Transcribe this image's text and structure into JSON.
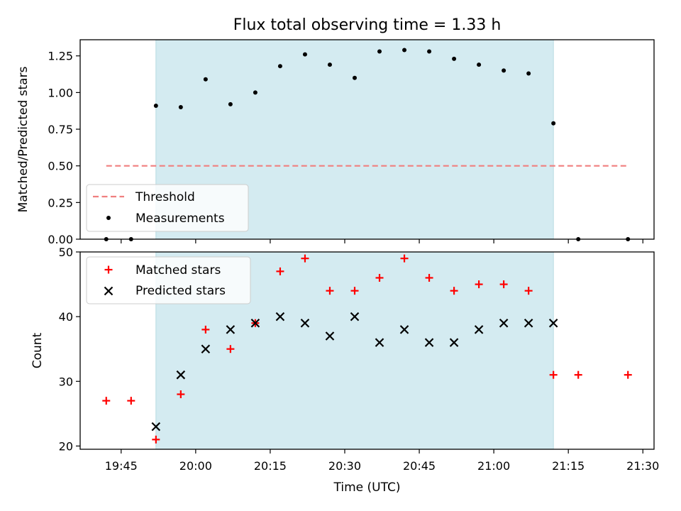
{
  "chart_data": [
    {
      "type": "scatter",
      "title": "Flux total observing time = 1.33 h",
      "xlabel": "",
      "ylabel": "Matched/Predicted stars",
      "ylim": [
        0,
        1.36
      ],
      "yticks": [
        "0.00",
        "0.25",
        "0.50",
        "0.75",
        "1.00",
        "1.25"
      ],
      "ytick_values": [
        0,
        0.25,
        0.5,
        0.75,
        1.0,
        1.25
      ],
      "legend_position": "lower-left",
      "shaded_interval": [
        "19:52",
        "21:12"
      ],
      "shade_color": "#d4ebf1",
      "series": [
        {
          "name": "Threshold",
          "style": "dashed-line",
          "color": "#f07f7f",
          "x": [
            "19:42",
            "21:27"
          ],
          "y": [
            0.5,
            0.5
          ]
        },
        {
          "name": "Measurements",
          "style": "dot",
          "color": "#000000",
          "x": [
            "19:42",
            "19:47",
            "19:52",
            "19:57",
            "20:02",
            "20:07",
            "20:12",
            "20:17",
            "20:22",
            "20:27",
            "20:32",
            "20:37",
            "20:42",
            "20:47",
            "20:52",
            "20:57",
            "21:02",
            "21:07",
            "21:12",
            "21:17",
            "21:27"
          ],
          "y": [
            0,
            0,
            0.91,
            0.9,
            1.09,
            0.92,
            1.0,
            1.18,
            1.26,
            1.19,
            1.1,
            1.28,
            1.29,
            1.28,
            1.23,
            1.19,
            1.15,
            1.13,
            0.79,
            0,
            0
          ]
        }
      ]
    },
    {
      "type": "scatter",
      "title": "",
      "xlabel": "Time (UTC)",
      "ylabel": "Count",
      "ylim": [
        19.5,
        50
      ],
      "yticks": [
        "20",
        "30",
        "40",
        "50"
      ],
      "ytick_values": [
        20,
        30,
        40,
        50
      ],
      "xticks": [
        "19:45",
        "20:00",
        "20:15",
        "20:30",
        "20:45",
        "21:00",
        "21:15",
        "21:30"
      ],
      "legend_position": "upper-left",
      "shaded_interval": [
        "19:52",
        "21:12"
      ],
      "series": [
        {
          "name": "Matched stars",
          "marker": "plus",
          "color": "#ff0000",
          "x": [
            "19:42",
            "19:47",
            "19:52",
            "19:57",
            "20:02",
            "20:07",
            "20:12",
            "20:17",
            "20:22",
            "20:27",
            "20:32",
            "20:37",
            "20:42",
            "20:47",
            "20:52",
            "20:57",
            "21:02",
            "21:07",
            "21:12",
            "21:17",
            "21:27"
          ],
          "y": [
            27,
            27,
            21,
            28,
            38,
            35,
            39,
            47,
            49,
            44,
            44,
            46,
            49,
            46,
            44,
            45,
            45,
            44,
            31,
            31,
            31
          ]
        },
        {
          "name": "Predicted stars",
          "marker": "x",
          "color": "#000000",
          "x": [
            "19:52",
            "19:57",
            "20:02",
            "20:07",
            "20:12",
            "20:17",
            "20:22",
            "20:27",
            "20:32",
            "20:37",
            "20:42",
            "20:47",
            "20:52",
            "20:57",
            "21:02",
            "21:07",
            "21:12"
          ],
          "y": [
            23,
            31,
            35,
            38,
            39,
            40,
            39,
            37,
            40,
            36,
            38,
            36,
            36,
            38,
            39,
            39,
            39
          ]
        }
      ]
    }
  ]
}
